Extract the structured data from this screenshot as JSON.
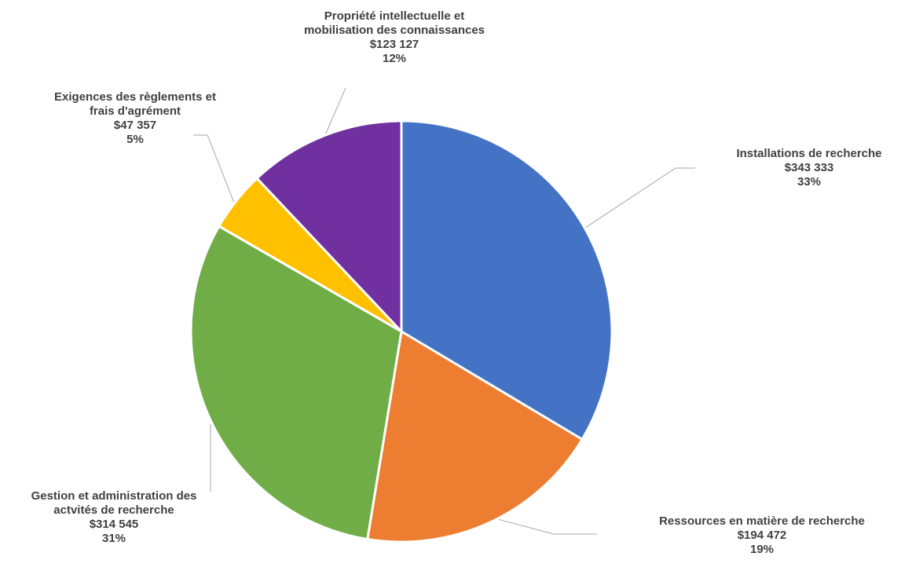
{
  "chart_data": {
    "type": "pie",
    "title": "",
    "start_angle_deg": 0,
    "direction": "clockwise",
    "slices": [
      {
        "name": "Installations de recherche",
        "label_lines": [
          "Installations de recherche"
        ],
        "value": 343333,
        "value_label": "$343 333",
        "percent_label": "33%",
        "color": "#4472C4"
      },
      {
        "name": "Ressources en matière de recherche",
        "label_lines": [
          "Ressources en matière de recherche"
        ],
        "value": 194472,
        "value_label": "$194 472",
        "percent_label": "19%",
        "color": "#ED7D31"
      },
      {
        "name": "Gestion et administration des actvités de recherche",
        "label_lines": [
          "Gestion et administration des",
          "actvités de recherche"
        ],
        "value": 314545,
        "value_label": "$314 545",
        "percent_label": "31%",
        "color": "#70AD47"
      },
      {
        "name": "Exigences des règlements et frais d'agrément",
        "label_lines": [
          "Exigences des règlements et",
          "frais d'agrément"
        ],
        "value": 47357,
        "value_label": "$47 357",
        "percent_label": "5%",
        "color": "#FFC000"
      },
      {
        "name": "Propriété intellectuelle et mobilisation des connaissances",
        "label_lines": [
          "Propriété intellectuelle et",
          "mobilisation des connaissances"
        ],
        "value": 123127,
        "value_label": "$123 127",
        "percent_label": "12%",
        "color": "#7030A0"
      }
    ]
  }
}
